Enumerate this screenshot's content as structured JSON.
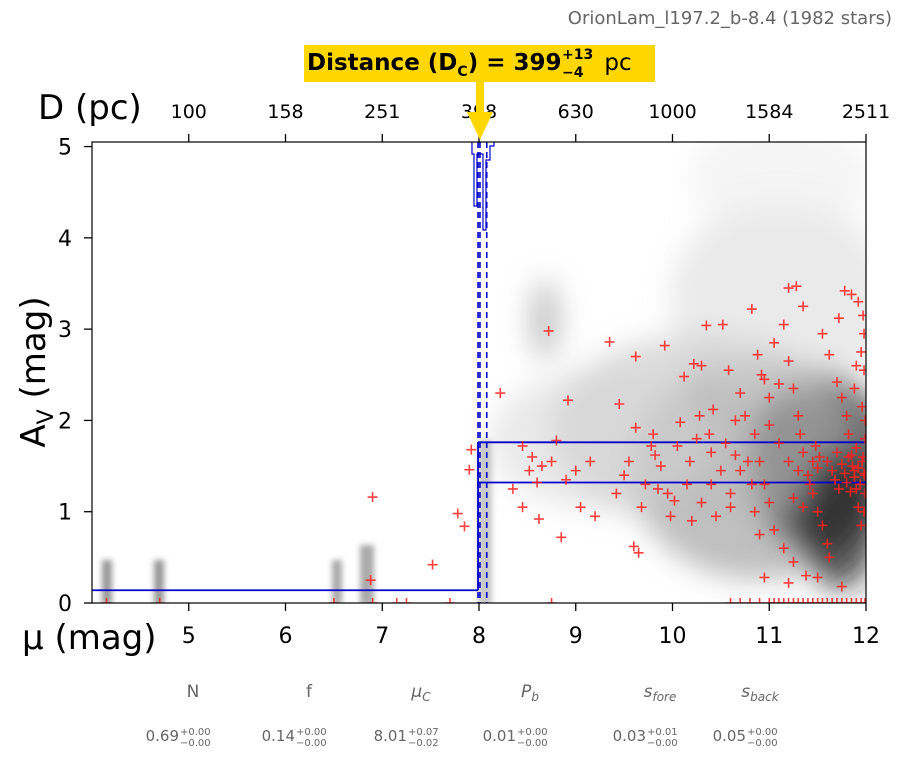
{
  "chart_data": {
    "type": "scatter",
    "title": "OrionLam_l197.2_b-8.4 (1982 stars)",
    "xlabel": "μ (mag)",
    "ylabel": "A_V (mag)",
    "top_axis_label": "D (pc)",
    "xlim": [
      4,
      12
    ],
    "ylim": [
      0,
      5.05
    ],
    "x_ticks": [
      5,
      6,
      7,
      8,
      9,
      10,
      11,
      12
    ],
    "y_ticks": [
      0,
      1,
      2,
      3,
      4,
      5
    ],
    "top_ticks": [
      {
        "mu": 5,
        "label": "100"
      },
      {
        "mu": 6,
        "label": "158"
      },
      {
        "mu": 7,
        "label": "251"
      },
      {
        "mu": 8,
        "label": "398"
      },
      {
        "mu": 9,
        "label": "630"
      },
      {
        "mu": 10,
        "label": "1000"
      },
      {
        "mu": 11,
        "label": "1584"
      },
      {
        "mu": 12,
        "label": "2511"
      }
    ],
    "annotation": {
      "prefix": "Distance (D",
      "sub": "C",
      "mid": ") = 399",
      "sup": "+13",
      "subval": "−4",
      "unit": "pc",
      "distance_mu": 8.01,
      "color": "#ffd700"
    },
    "model": {
      "mu_c": 8.01,
      "mu_c_lo": 7.99,
      "mu_c_hi": 8.08,
      "foreground_av": 0.14,
      "background_av_upper": 1.76,
      "background_av_lower": 1.32,
      "line_color": "#0000cc"
    },
    "star_color": "#ff2020",
    "stars": [
      [
        6.9,
        1.16
      ],
      [
        7.52,
        0.42
      ],
      [
        7.78,
        0.98
      ],
      [
        7.92,
        1.68
      ],
      [
        7.9,
        1.46
      ],
      [
        7.85,
        0.84
      ],
      [
        7.7,
        0.0
      ],
      [
        7.15,
        0.0
      ],
      [
        7.25,
        0.0
      ],
      [
        6.5,
        0.0
      ],
      [
        6.9,
        0.0
      ],
      [
        6.88,
        0.25
      ],
      [
        4.15,
        0.0
      ],
      [
        4.7,
        0.0
      ],
      [
        8.22,
        2.3
      ],
      [
        8.72,
        2.98
      ],
      [
        8.45,
        1.72
      ],
      [
        8.52,
        1.45
      ],
      [
        8.6,
        1.32
      ],
      [
        8.45,
        1.05
      ],
      [
        8.35,
        1.25
      ],
      [
        8.62,
        0.92
      ],
      [
        8.55,
        1.6
      ],
      [
        8.65,
        1.5
      ],
      [
        8.75,
        1.55
      ],
      [
        8.8,
        1.78
      ],
      [
        8.92,
        2.22
      ],
      [
        8.75,
        0.0
      ],
      [
        8.85,
        0.72
      ],
      [
        8.9,
        1.35
      ],
      [
        9.0,
        1.45
      ],
      [
        9.05,
        1.05
      ],
      [
        9.15,
        1.55
      ],
      [
        9.2,
        0.95
      ],
      [
        9.35,
        2.86
      ],
      [
        9.62,
        2.7
      ],
      [
        9.92,
        2.82
      ],
      [
        9.45,
        2.18
      ],
      [
        9.62,
        1.92
      ],
      [
        9.78,
        1.72
      ],
      [
        9.5,
        1.4
      ],
      [
        9.42,
        1.2
      ],
      [
        9.68,
        1.05
      ],
      [
        9.6,
        0.62
      ],
      [
        9.65,
        0.55
      ],
      [
        9.55,
        1.55
      ],
      [
        9.72,
        1.3
      ],
      [
        9.8,
        1.85
      ],
      [
        9.88,
        1.5
      ],
      [
        9.95,
        1.2
      ],
      [
        10.12,
        2.48
      ],
      [
        10.22,
        2.62
      ],
      [
        10.3,
        2.6
      ],
      [
        10.35,
        3.04
      ],
      [
        10.52,
        3.05
      ],
      [
        10.58,
        2.55
      ],
      [
        10.42,
        2.12
      ],
      [
        10.08,
        1.98
      ],
      [
        10.25,
        1.8
      ],
      [
        10.4,
        1.65
      ],
      [
        10.5,
        1.45
      ],
      [
        10.15,
        1.3
      ],
      [
        10.3,
        1.1
      ],
      [
        10.45,
        0.95
      ],
      [
        10.6,
        1.2
      ],
      [
        10.2,
        0.9
      ],
      [
        10.55,
        1.75
      ],
      [
        10.65,
        2.0
      ],
      [
        10.7,
        2.3
      ],
      [
        10.75,
        2.05
      ],
      [
        10.78,
        1.55
      ],
      [
        10.82,
        1.3
      ],
      [
        10.85,
        1.0
      ],
      [
        10.9,
        0.75
      ],
      [
        10.95,
        2.45
      ],
      [
        10.82,
        3.22
      ],
      [
        10.88,
        2.72
      ],
      [
        10.92,
        2.5
      ],
      [
        11.0,
        2.25
      ],
      [
        11.05,
        2.85
      ],
      [
        11.1,
        2.4
      ],
      [
        11.15,
        3.05
      ],
      [
        11.2,
        3.45
      ],
      [
        11.28,
        3.47
      ],
      [
        11.35,
        3.25
      ],
      [
        11.2,
        2.65
      ],
      [
        11.25,
        2.35
      ],
      [
        11.3,
        2.05
      ],
      [
        11.32,
        1.85
      ],
      [
        11.35,
        1.65
      ],
      [
        11.4,
        1.4
      ],
      [
        11.45,
        1.2
      ],
      [
        11.5,
        1.0
      ],
      [
        11.55,
        0.85
      ],
      [
        11.6,
        0.65
      ],
      [
        11.62,
        0.5
      ],
      [
        11.38,
        0.3
      ],
      [
        11.25,
        0.45
      ],
      [
        11.15,
        0.6
      ],
      [
        11.05,
        0.8
      ],
      [
        11.0,
        1.1
      ],
      [
        10.95,
        1.3
      ],
      [
        11.55,
        2.95
      ],
      [
        11.62,
        2.72
      ],
      [
        11.7,
        2.42
      ],
      [
        11.72,
        3.12
      ],
      [
        11.75,
        2.25
      ],
      [
        11.8,
        2.05
      ],
      [
        11.82,
        1.85
      ],
      [
        11.85,
        1.62
      ],
      [
        11.88,
        1.45
      ],
      [
        11.9,
        1.25
      ],
      [
        11.92,
        1.05
      ],
      [
        11.95,
        0.85
      ],
      [
        11.78,
        3.42
      ],
      [
        11.85,
        3.38
      ],
      [
        11.92,
        3.3
      ],
      [
        11.97,
        3.15
      ],
      [
        11.98,
        2.95
      ],
      [
        11.95,
        2.75
      ],
      [
        11.98,
        2.55
      ],
      [
        11.9,
        2.6
      ],
      [
        11.88,
        2.35
      ],
      [
        11.96,
        2.15
      ],
      [
        11.99,
        2.0
      ],
      [
        11.99,
        1.8
      ],
      [
        11.97,
        1.6
      ],
      [
        11.99,
        1.4
      ],
      [
        11.99,
        1.2
      ],
      [
        11.98,
        1.0
      ],
      [
        11.6,
        1.55
      ],
      [
        11.65,
        1.45
      ],
      [
        11.68,
        1.35
      ],
      [
        11.7,
        1.65
      ],
      [
        11.72,
        1.25
      ],
      [
        11.75,
        1.52
      ],
      [
        11.78,
        1.42
      ],
      [
        11.8,
        1.32
      ],
      [
        11.82,
        1.6
      ],
      [
        11.84,
        1.22
      ],
      [
        11.86,
        1.5
      ],
      [
        11.88,
        1.38
      ],
      [
        11.9,
        1.7
      ],
      [
        11.92,
        1.48
      ],
      [
        11.94,
        1.3
      ],
      [
        11.96,
        1.55
      ],
      [
        11.98,
        1.42
      ],
      [
        11.5,
        1.48
      ],
      [
        11.52,
        1.6
      ],
      [
        11.45,
        1.55
      ],
      [
        11.42,
        1.3
      ],
      [
        11.48,
        1.72
      ],
      [
        11.0,
        1.95
      ],
      [
        11.1,
        1.75
      ],
      [
        11.2,
        1.55
      ],
      [
        11.25,
        1.15
      ],
      [
        11.3,
        1.45
      ],
      [
        11.35,
        1.05
      ],
      [
        10.9,
        1.55
      ],
      [
        10.85,
        1.85
      ],
      [
        10.7,
        1.45
      ],
      [
        10.65,
        1.62
      ],
      [
        10.6,
        1.05
      ],
      [
        10.4,
        1.3
      ],
      [
        10.38,
        1.85
      ],
      [
        10.28,
        2.05
      ],
      [
        10.18,
        1.55
      ],
      [
        10.05,
        1.72
      ],
      [
        10.02,
        1.12
      ],
      [
        9.98,
        0.95
      ],
      [
        9.85,
        1.25
      ],
      [
        9.82,
        1.62
      ],
      [
        10.6,
        0.0
      ],
      [
        10.7,
        0.0
      ],
      [
        10.8,
        0.0
      ],
      [
        10.9,
        0.0
      ],
      [
        11.0,
        0.0
      ],
      [
        11.05,
        0.0
      ],
      [
        11.1,
        0.0
      ],
      [
        11.15,
        0.0
      ],
      [
        11.2,
        0.0
      ],
      [
        11.25,
        0.0
      ],
      [
        11.3,
        0.0
      ],
      [
        11.35,
        0.0
      ],
      [
        11.4,
        0.0
      ],
      [
        11.45,
        0.0
      ],
      [
        11.5,
        0.0
      ],
      [
        11.55,
        0.0
      ],
      [
        11.6,
        0.0
      ],
      [
        11.65,
        0.0
      ],
      [
        11.7,
        0.0
      ],
      [
        11.75,
        0.0
      ],
      [
        11.8,
        0.0
      ],
      [
        11.85,
        0.0
      ],
      [
        11.9,
        0.0
      ],
      [
        11.95,
        0.0
      ],
      [
        11.99,
        0.0
      ],
      [
        10.95,
        0.28
      ],
      [
        11.5,
        0.28
      ],
      [
        11.2,
        0.22
      ],
      [
        11.75,
        0.18
      ]
    ],
    "params": [
      {
        "name": "N",
        "value": "0.69",
        "plus": "+0.00",
        "minus": "−0.00"
      },
      {
        "name": "f",
        "value": "0.14",
        "plus": "+0.00",
        "minus": "−0.00"
      },
      {
        "name": "μ",
        "sub": "C",
        "value": "8.01",
        "plus": "+0.07",
        "minus": "−0.02"
      },
      {
        "name": "P",
        "sub": "b",
        "value": "0.01",
        "plus": "+0.00",
        "minus": "−0.00"
      },
      {
        "name": "s",
        "sub": "fore",
        "value": "0.03",
        "plus": "+0.01",
        "minus": "−0.00"
      },
      {
        "name": "s",
        "sub": "back",
        "value": "0.05",
        "plus": "+0.00",
        "minus": "−0.00"
      }
    ]
  }
}
